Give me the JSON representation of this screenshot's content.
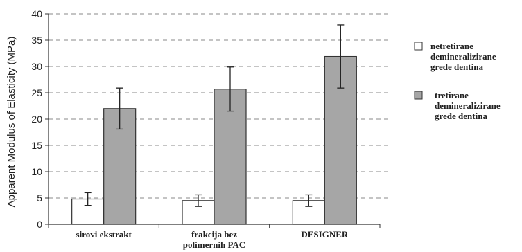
{
  "chart_data": {
    "type": "bar",
    "ylabel": "Apparent Modulus of Elasticity (MPa)",
    "xlabel": "",
    "ylim": [
      0,
      40
    ],
    "yticks": [
      0,
      5,
      10,
      15,
      20,
      25,
      30,
      35,
      40
    ],
    "grid": "horizontal dashed",
    "legend_position": "right",
    "categories": [
      [
        "sirovi ekstrakt"
      ],
      [
        "frakcija bez",
        "polimernih PAC"
      ],
      [
        "DESIGNER"
      ]
    ],
    "series": [
      {
        "name": [
          "netretirane",
          "demineralizirane",
          "grede dentina"
        ],
        "color": "#ffffff",
        "values": [
          4.8,
          4.5,
          4.5
        ],
        "errors": [
          1.2,
          1.1,
          1.1
        ]
      },
      {
        "name": [
          "tretirane",
          "demineralizirane",
          "grede dentina"
        ],
        "color": "#a6a6a6",
        "values": [
          22.0,
          25.7,
          31.9
        ],
        "errors": [
          3.9,
          4.2,
          6.0
        ]
      }
    ]
  }
}
